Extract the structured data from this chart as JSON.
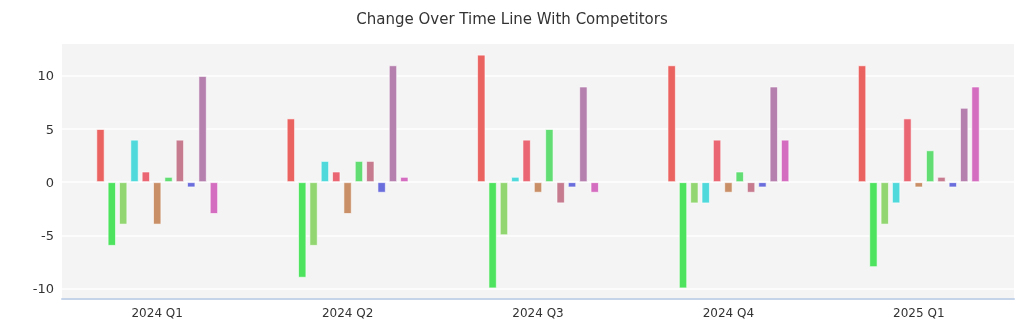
{
  "chart_data": {
    "type": "bar",
    "title": "Change Over Time Line With Competitors",
    "categories": [
      "2024 Q1",
      "2024 Q2",
      "2024 Q3",
      "2024 Q4",
      "2025 Q1"
    ],
    "series": [
      {
        "color": "#eb6361",
        "values": [
          5,
          6,
          12,
          11,
          11
        ]
      },
      {
        "color": "#4ee35f",
        "values": [
          -6,
          -9,
          -10,
          -10,
          -8
        ]
      },
      {
        "color": "#92d672",
        "values": [
          -4,
          -6,
          -5,
          -2,
          -4
        ]
      },
      {
        "color": "#4fd9db",
        "values": [
          4,
          2,
          0.5,
          -2,
          -2
        ]
      },
      {
        "color": "#e96672",
        "values": [
          1,
          1,
          4,
          4,
          6
        ]
      },
      {
        "color": "#c99068",
        "values": [
          -4,
          -3,
          -1,
          -1,
          -0.5
        ]
      },
      {
        "color": "#62dd74",
        "values": [
          0.5,
          2,
          5,
          1,
          3
        ]
      },
      {
        "color": "#c67b8f",
        "values": [
          4,
          2,
          -2,
          -1,
          0.5
        ]
      },
      {
        "color": "#6a6ddc",
        "values": [
          -0.5,
          -1,
          -0.5,
          -0.5,
          -0.5
        ]
      },
      {
        "color": "#b57fae",
        "values": [
          10,
          11,
          9,
          9,
          7
        ]
      },
      {
        "color": "#d46cbf",
        "values": [
          -3,
          0.5,
          -1,
          4,
          9
        ]
      }
    ],
    "ylim": [
      -11,
      13
    ],
    "yticks": [
      -10,
      -5,
      0,
      5,
      10
    ],
    "grid": "y"
  }
}
